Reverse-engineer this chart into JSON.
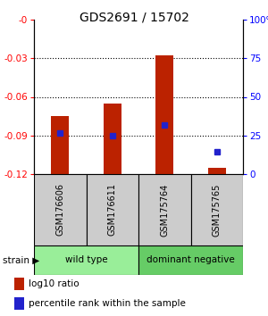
{
  "title": "GDS2691 / 15702",
  "samples": [
    "GSM176606",
    "GSM176611",
    "GSM175764",
    "GSM175765"
  ],
  "bar_tops": [
    -0.075,
    -0.065,
    -0.028,
    -0.115
  ],
  "bar_bottoms": [
    -0.121,
    -0.121,
    -0.121,
    -0.121
  ],
  "blue_dots": [
    -0.088,
    -0.09,
    -0.082,
    -0.103
  ],
  "ylim": [
    -0.12,
    0.0
  ],
  "yticks_left": [
    0,
    -0.03,
    -0.06,
    -0.09,
    -0.12
  ],
  "yticks_left_labels": [
    "-0",
    "-0.03",
    "-0.06",
    "-0.09",
    "-0.12"
  ],
  "yticks_right_pct": [
    0,
    25,
    50,
    75,
    100
  ],
  "yticks_right_labels": [
    "0",
    "25",
    "50",
    "75",
    "100%"
  ],
  "bar_color": "#bb2200",
  "dot_color": "#2222cc",
  "groups": [
    {
      "label": "wild type",
      "samples": [
        0,
        1
      ],
      "color": "#99ee99"
    },
    {
      "label": "dominant negative",
      "samples": [
        2,
        3
      ],
      "color": "#66cc66"
    }
  ],
  "strain_label": "strain",
  "legend_items": [
    {
      "color": "#bb2200",
      "label": "log10 ratio"
    },
    {
      "color": "#2222cc",
      "label": "percentile rank within the sample"
    }
  ],
  "title_fontsize": 10,
  "bar_width": 0.35,
  "grid_ticks": [
    -0.03,
    -0.06,
    -0.09
  ]
}
